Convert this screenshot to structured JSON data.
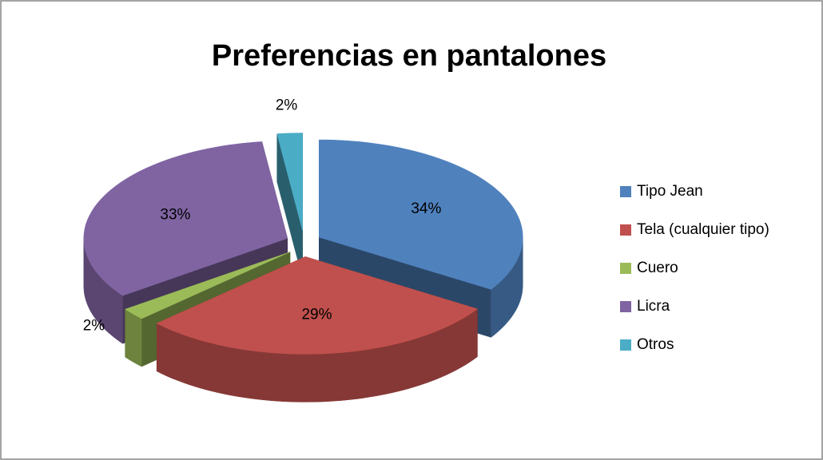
{
  "chart_data": {
    "type": "pie3d",
    "title": "Preferencias en pantalones",
    "categories": [
      "Tipo Jean",
      "Tela (cualquier tipo)",
      "Cuero",
      "Licra",
      "Otros"
    ],
    "values": [
      34,
      29,
      2,
      33,
      2
    ],
    "value_labels": [
      "34%",
      "29%",
      "2%",
      "33%",
      "2%"
    ],
    "colors": [
      "#4f81bd",
      "#c0504d",
      "#9bbb59",
      "#8064a2",
      "#4bacc6"
    ],
    "legend": "right"
  }
}
